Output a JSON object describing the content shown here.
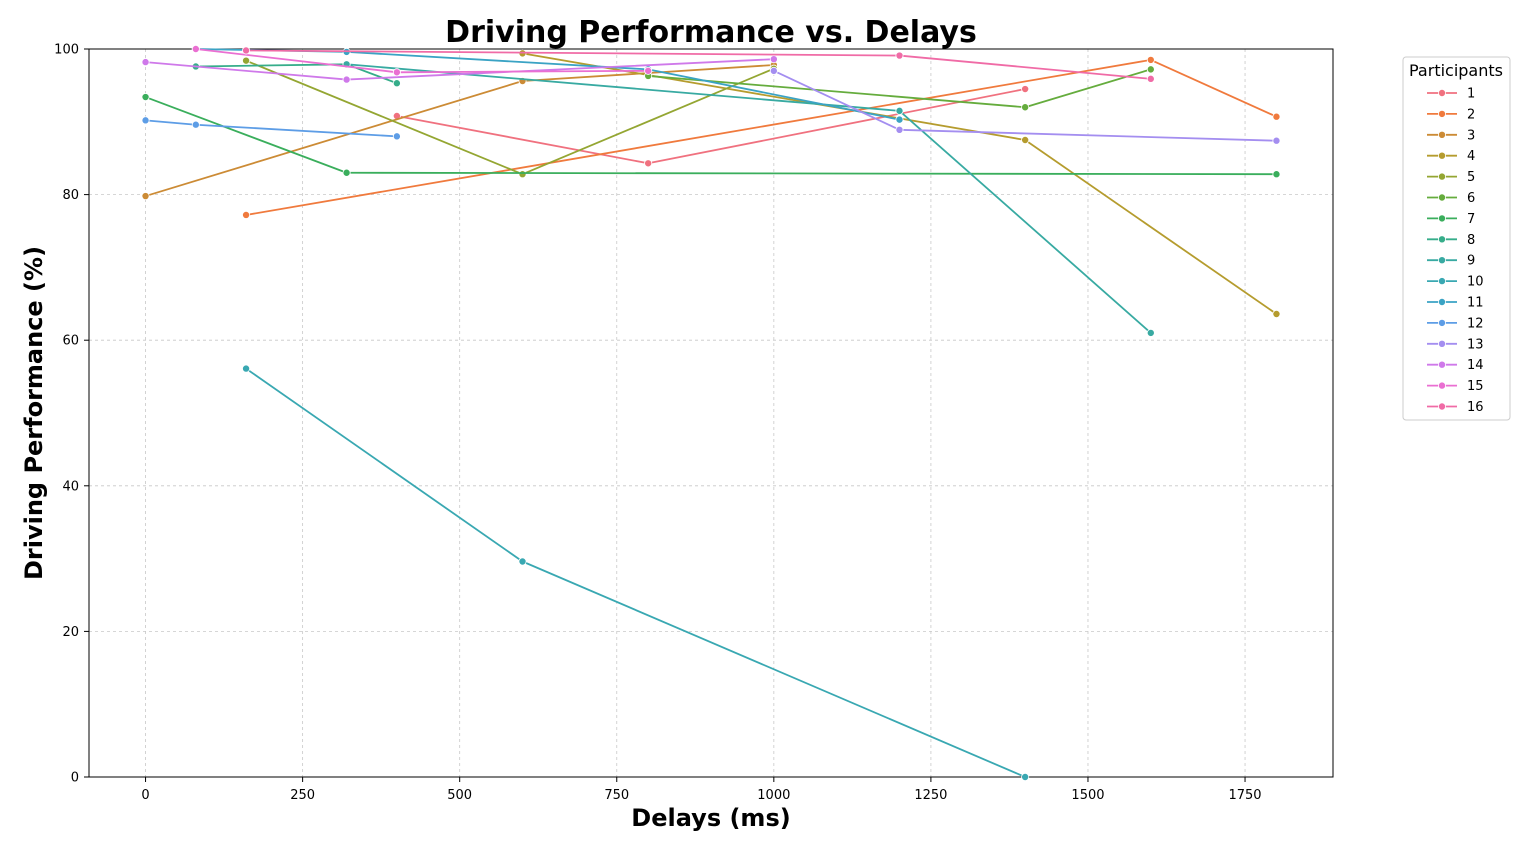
{
  "chart_data": {
    "type": "line",
    "title": "Driving Performance vs. Delays",
    "xlabel": "Delays (ms)",
    "ylabel": "Driving Performance (%)",
    "xlim": [
      -90,
      1890
    ],
    "ylim": [
      0,
      100
    ],
    "x_ticks": [
      0,
      250,
      500,
      750,
      1000,
      1250,
      1500,
      1750
    ],
    "y_ticks": [
      0,
      20,
      40,
      60,
      80,
      100
    ],
    "grid": true,
    "grid_style": "dashed",
    "legend": {
      "title": "Participants",
      "placement": "outside-top-right"
    },
    "series": [
      {
        "name": "1",
        "color": "#f0717f",
        "points": [
          [
            400,
            90.8
          ],
          [
            800,
            84.3
          ],
          [
            1400,
            94.5
          ]
        ]
      },
      {
        "name": "2",
        "color": "#f07a3d",
        "points": [
          [
            160,
            77.2
          ],
          [
            1600,
            98.5
          ],
          [
            1800,
            90.7
          ]
        ]
      },
      {
        "name": "3",
        "color": "#cc8b35",
        "points": [
          [
            0,
            79.8
          ],
          [
            600,
            95.6
          ],
          [
            1000,
            97.8
          ]
        ]
      },
      {
        "name": "4",
        "color": "#b59c2e",
        "points": [
          [
            600,
            99.4
          ],
          [
            1400,
            87.5
          ],
          [
            1800,
            63.6
          ]
        ]
      },
      {
        "name": "5",
        "color": "#94a632",
        "points": [
          [
            160,
            98.4
          ],
          [
            600,
            82.8
          ],
          [
            1000,
            97.3
          ]
        ]
      },
      {
        "name": "6",
        "color": "#65ac3d",
        "points": [
          [
            800,
            96.3
          ],
          [
            1400,
            92.0
          ],
          [
            1600,
            97.2
          ]
        ]
      },
      {
        "name": "7",
        "color": "#3aae5c",
        "points": [
          [
            0,
            93.4
          ],
          [
            320,
            83.0
          ],
          [
            1800,
            82.8
          ]
        ]
      },
      {
        "name": "8",
        "color": "#36ad8a",
        "points": [
          [
            80,
            97.6
          ],
          [
            320,
            97.9
          ],
          [
            400,
            95.3
          ]
        ]
      },
      {
        "name": "9",
        "color": "#38aaa2",
        "points": [
          [
            320,
            97.9
          ],
          [
            1200,
            91.5
          ],
          [
            1600,
            61.0
          ]
        ]
      },
      {
        "name": "10",
        "color": "#39a8b2",
        "points": [
          [
            160,
            56.1
          ],
          [
            600,
            29.6
          ],
          [
            1400,
            0.0
          ]
        ]
      },
      {
        "name": "11",
        "color": "#3aa3c4",
        "points": [
          [
            80,
            100.0
          ],
          [
            320,
            99.6
          ],
          [
            800,
            97.2
          ],
          [
            1200,
            90.3
          ]
        ]
      },
      {
        "name": "12",
        "color": "#5d9de6",
        "points": [
          [
            0,
            90.2
          ],
          [
            80,
            89.6
          ],
          [
            400,
            88.0
          ]
        ]
      },
      {
        "name": "13",
        "color": "#a48ef0",
        "points": [
          [
            1000,
            97.0
          ],
          [
            1200,
            88.9
          ],
          [
            1800,
            87.4
          ]
        ]
      },
      {
        "name": "14",
        "color": "#cf79ea",
        "points": [
          [
            0,
            98.2
          ],
          [
            320,
            95.8
          ],
          [
            1000,
            98.6
          ]
        ]
      },
      {
        "name": "15",
        "color": "#ea6fd2",
        "points": [
          [
            80,
            100.0
          ],
          [
            400,
            96.8
          ],
          [
            800,
            97.0
          ]
        ]
      },
      {
        "name": "16",
        "color": "#f06ba6",
        "points": [
          [
            160,
            99.8
          ],
          [
            1200,
            99.1
          ],
          [
            1600,
            95.9
          ]
        ]
      }
    ]
  }
}
